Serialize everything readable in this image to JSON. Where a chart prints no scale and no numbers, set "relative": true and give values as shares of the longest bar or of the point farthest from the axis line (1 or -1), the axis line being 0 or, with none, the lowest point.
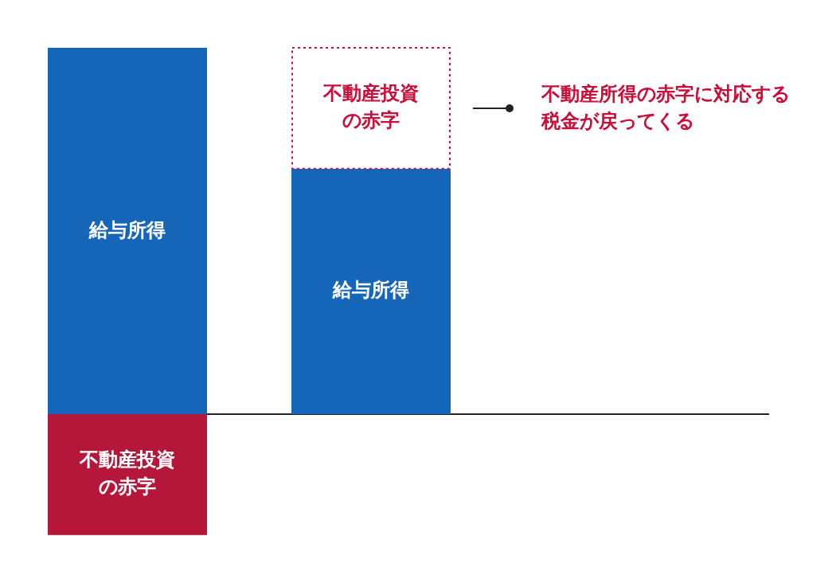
{
  "chart_data": {
    "type": "bar",
    "stacked": true,
    "relative": true,
    "categories": [
      null,
      null
    ],
    "series": [
      {
        "name": "給与所得",
        "color": "#1565b8",
        "values": [
          1,
          0.67
        ]
      },
      {
        "name": "不動産投資の赤字",
        "color": "#b5173a",
        "values": [
          -0.33,
          null
        ]
      },
      {
        "name": "不動産投資の赤字",
        "color": "#c8103a",
        "line_style": "dotted",
        "values": [
          null,
          0.33
        ]
      }
    ],
    "annotations": [
      "不動産所得の赤字に対応する税金が戻ってくる"
    ]
  }
}
